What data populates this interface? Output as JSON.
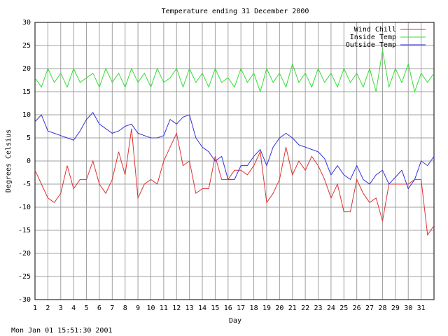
{
  "chart_data": {
    "type": "line",
    "title": "Temperature ending 31 December 2000",
    "x_label": "Day",
    "y_label": "Degrees Celsius",
    "footer": "Mon Jan 01 15:51:30 2001",
    "x": [
      1,
      1.5,
      2,
      2.5,
      3,
      3.5,
      4,
      4.5,
      5,
      5.5,
      6,
      6.5,
      7,
      7.5,
      8,
      8.5,
      9,
      9.5,
      10,
      10.5,
      11,
      11.5,
      12,
      12.5,
      13,
      13.5,
      14,
      14.5,
      15,
      15.5,
      16,
      16.5,
      17,
      17.5,
      18,
      18.5,
      19,
      19.5,
      20,
      20.5,
      21,
      21.5,
      22,
      22.5,
      23,
      23.5,
      24,
      24.5,
      25,
      25.5,
      26,
      26.5,
      27,
      27.5,
      28,
      28.5,
      29,
      29.5,
      30,
      30.5,
      31,
      31.5,
      32
    ],
    "series": [
      {
        "name": "Wind Chill",
        "color": "#e03030",
        "values": [
          -2,
          -5,
          -8,
          -9,
          -7,
          -1,
          -6,
          -4,
          -4,
          0,
          -5,
          -7,
          -4,
          2,
          -3,
          7,
          -8,
          -5,
          -4,
          -5,
          0,
          3,
          6,
          -1,
          0,
          -7,
          -6,
          -6,
          1,
          -4,
          -4,
          -2,
          -2,
          -3,
          -1,
          2,
          -9,
          -7,
          -4,
          3,
          -3,
          0,
          -2,
          1,
          -1,
          -4,
          -8,
          -5,
          -11,
          -11,
          -4,
          -7,
          -9,
          -8,
          -13,
          -5,
          -5,
          -5,
          -5,
          -4,
          -4,
          -16,
          -14
        ]
      },
      {
        "name": "Inside Temp",
        "color": "#30e030",
        "values": [
          18,
          16,
          20,
          17,
          19,
          16,
          20,
          17,
          18,
          19,
          16,
          20,
          17,
          19,
          16,
          20,
          17,
          19,
          16,
          20,
          17,
          18,
          20,
          16,
          20,
          17,
          19,
          16,
          20,
          17,
          18,
          16,
          20,
          17,
          19,
          15,
          20,
          17,
          19,
          16,
          21,
          17,
          19,
          16,
          20,
          17,
          19,
          16,
          20,
          17,
          19,
          16,
          20,
          15,
          24,
          16,
          20,
          17,
          21,
          15,
          19,
          17,
          19
        ]
      },
      {
        "name": "Outside Temp",
        "color": "#3030e0",
        "values": [
          8.5,
          10,
          6.5,
          6,
          5.5,
          5,
          4.5,
          6.5,
          9,
          10.5,
          8,
          7,
          6,
          6.5,
          7.5,
          8,
          6,
          5.5,
          5,
          5,
          5.5,
          9,
          8,
          9.5,
          10,
          5,
          3,
          2,
          0,
          1,
          -4,
          -4,
          -1,
          -1,
          1,
          2.5,
          -1,
          3,
          5,
          6,
          5,
          3.5,
          3,
          2.5,
          2,
          0.5,
          -3,
          -1,
          -3,
          -4,
          -1,
          -4,
          -5,
          -3,
          -2,
          -5,
          -3.5,
          -2,
          -6,
          -4,
          0,
          -1,
          1
        ]
      }
    ],
    "xlim": [
      1,
      32
    ],
    "ylim": [
      -30,
      30
    ],
    "xticks": [
      1,
      2,
      3,
      4,
      5,
      6,
      7,
      8,
      9,
      10,
      11,
      12,
      13,
      14,
      15,
      16,
      17,
      18,
      19,
      20,
      21,
      22,
      23,
      24,
      25,
      26,
      27,
      28,
      29,
      30,
      31
    ],
    "yticks": [
      -30,
      -25,
      -20,
      -15,
      -10,
      -5,
      0,
      5,
      10,
      15,
      20,
      25,
      30
    ],
    "grid": true
  }
}
